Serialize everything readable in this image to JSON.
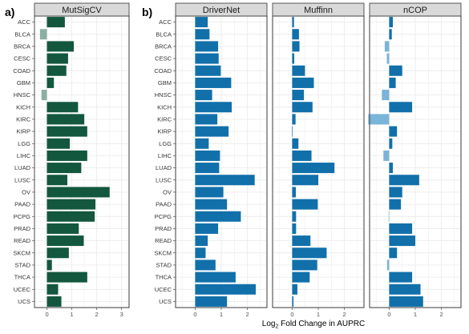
{
  "panel_letters": [
    "a)",
    "b)"
  ],
  "x_axis_label": {
    "main": "Log",
    "subscript": "2",
    "rest": " Fold Change in AUPRC"
  },
  "colors": {
    "mutsigcv_positive": "#13573f",
    "mutsigcv_negative": "#8bb0a3",
    "others_positive": "#1170aa",
    "others_negative": "#7ab4d8",
    "strip_fill": "#d9d9d9",
    "grid": "#ebebeb"
  },
  "chart_data": [
    {
      "type": "bar",
      "orientation": "horizontal",
      "title": "MutSigCV",
      "categories": [
        "ACC",
        "BLCA",
        "BRCA",
        "CESC",
        "COAD",
        "GBM",
        "HNSC",
        "KICH",
        "KIRC",
        "KIRP",
        "LGG",
        "LIHC",
        "LUAD",
        "LUSC",
        "OV",
        "PAAD",
        "PCPG",
        "PRAD",
        "READ",
        "SKCM",
        "STAD",
        "THCA",
        "UCEC",
        "UCS"
      ],
      "values": [
        0.72,
        -0.28,
        1.08,
        0.85,
        0.78,
        0.28,
        -0.22,
        1.25,
        1.5,
        1.62,
        0.92,
        1.62,
        1.38,
        0.82,
        2.52,
        1.95,
        1.92,
        1.28,
        1.48,
        0.88,
        0.2,
        1.62,
        0.45,
        0.58
      ],
      "xlim": [
        -0.5,
        3.3
      ],
      "xticks": [
        "0",
        "1",
        "2",
        "3"
      ],
      "grid": true
    },
    {
      "type": "bar",
      "orientation": "horizontal",
      "title": "DriverNet",
      "categories": [
        "ACC",
        "BLCA",
        "BRCA",
        "CESC",
        "COAD",
        "GBM",
        "HNSC",
        "KICH",
        "KIRC",
        "KIRP",
        "LGG",
        "LIHC",
        "LUAD",
        "LUSC",
        "OV",
        "PAAD",
        "PCPG",
        "PRAD",
        "READ",
        "SKCM",
        "STAD",
        "THCA",
        "UCEC",
        "UCS"
      ],
      "values": [
        0.48,
        0.55,
        0.88,
        0.9,
        0.98,
        1.38,
        0.65,
        1.4,
        0.85,
        1.28,
        0.52,
        0.95,
        0.92,
        2.28,
        1.08,
        1.22,
        1.75,
        0.88,
        0.48,
        0.4,
        0.78,
        1.55,
        2.32,
        1.22
      ],
      "xlim": [
        -0.75,
        2.75
      ],
      "xticks": [
        "0",
        "1",
        "2"
      ],
      "grid": true
    },
    {
      "type": "bar",
      "orientation": "horizontal",
      "title": "Muffinn",
      "categories": [
        "ACC",
        "BLCA",
        "BRCA",
        "CESC",
        "COAD",
        "GBM",
        "HNSC",
        "KICH",
        "KIRC",
        "KIRP",
        "LGG",
        "LIHC",
        "LUAD",
        "LUSC",
        "OV",
        "PAAD",
        "PCPG",
        "PRAD",
        "READ",
        "SKCM",
        "STAD",
        "THCA",
        "UCEC",
        "UCS"
      ],
      "values": [
        0.07,
        0.26,
        0.28,
        0.08,
        0.49,
        0.83,
        0.45,
        0.78,
        0.13,
        0.0,
        0.24,
        0.74,
        1.62,
        1.0,
        0.14,
        0.98,
        0.15,
        0.15,
        0.7,
        1.32,
        0.96,
        0.67,
        0.2,
        0.05
      ],
      "xlim": [
        -0.75,
        2.75
      ],
      "xticks": [
        "0",
        "1",
        "2"
      ],
      "grid": true
    },
    {
      "type": "bar",
      "orientation": "horizontal",
      "title": "nCOP",
      "categories": [
        "ACC",
        "BLCA",
        "BRCA",
        "CESC",
        "COAD",
        "GBM",
        "HNSC",
        "KICH",
        "KIRC",
        "KIRP",
        "LGG",
        "LIHC",
        "LUAD",
        "LUSC",
        "OV",
        "PAAD",
        "PCPG",
        "PRAD",
        "READ",
        "SKCM",
        "STAD",
        "THCA",
        "UCEC",
        "UCS"
      ],
      "values": [
        0.14,
        0.1,
        -0.17,
        -0.09,
        0.5,
        0.25,
        -0.28,
        0.88,
        -0.8,
        0.3,
        0.12,
        -0.22,
        0.14,
        1.15,
        0.5,
        0.45,
        -0.02,
        0.88,
        1.0,
        0.3,
        -0.08,
        0.88,
        1.2,
        1.3
      ],
      "xlim": [
        -0.75,
        2.75
      ],
      "xticks": [
        "0",
        "1",
        "2"
      ],
      "grid": true
    }
  ]
}
